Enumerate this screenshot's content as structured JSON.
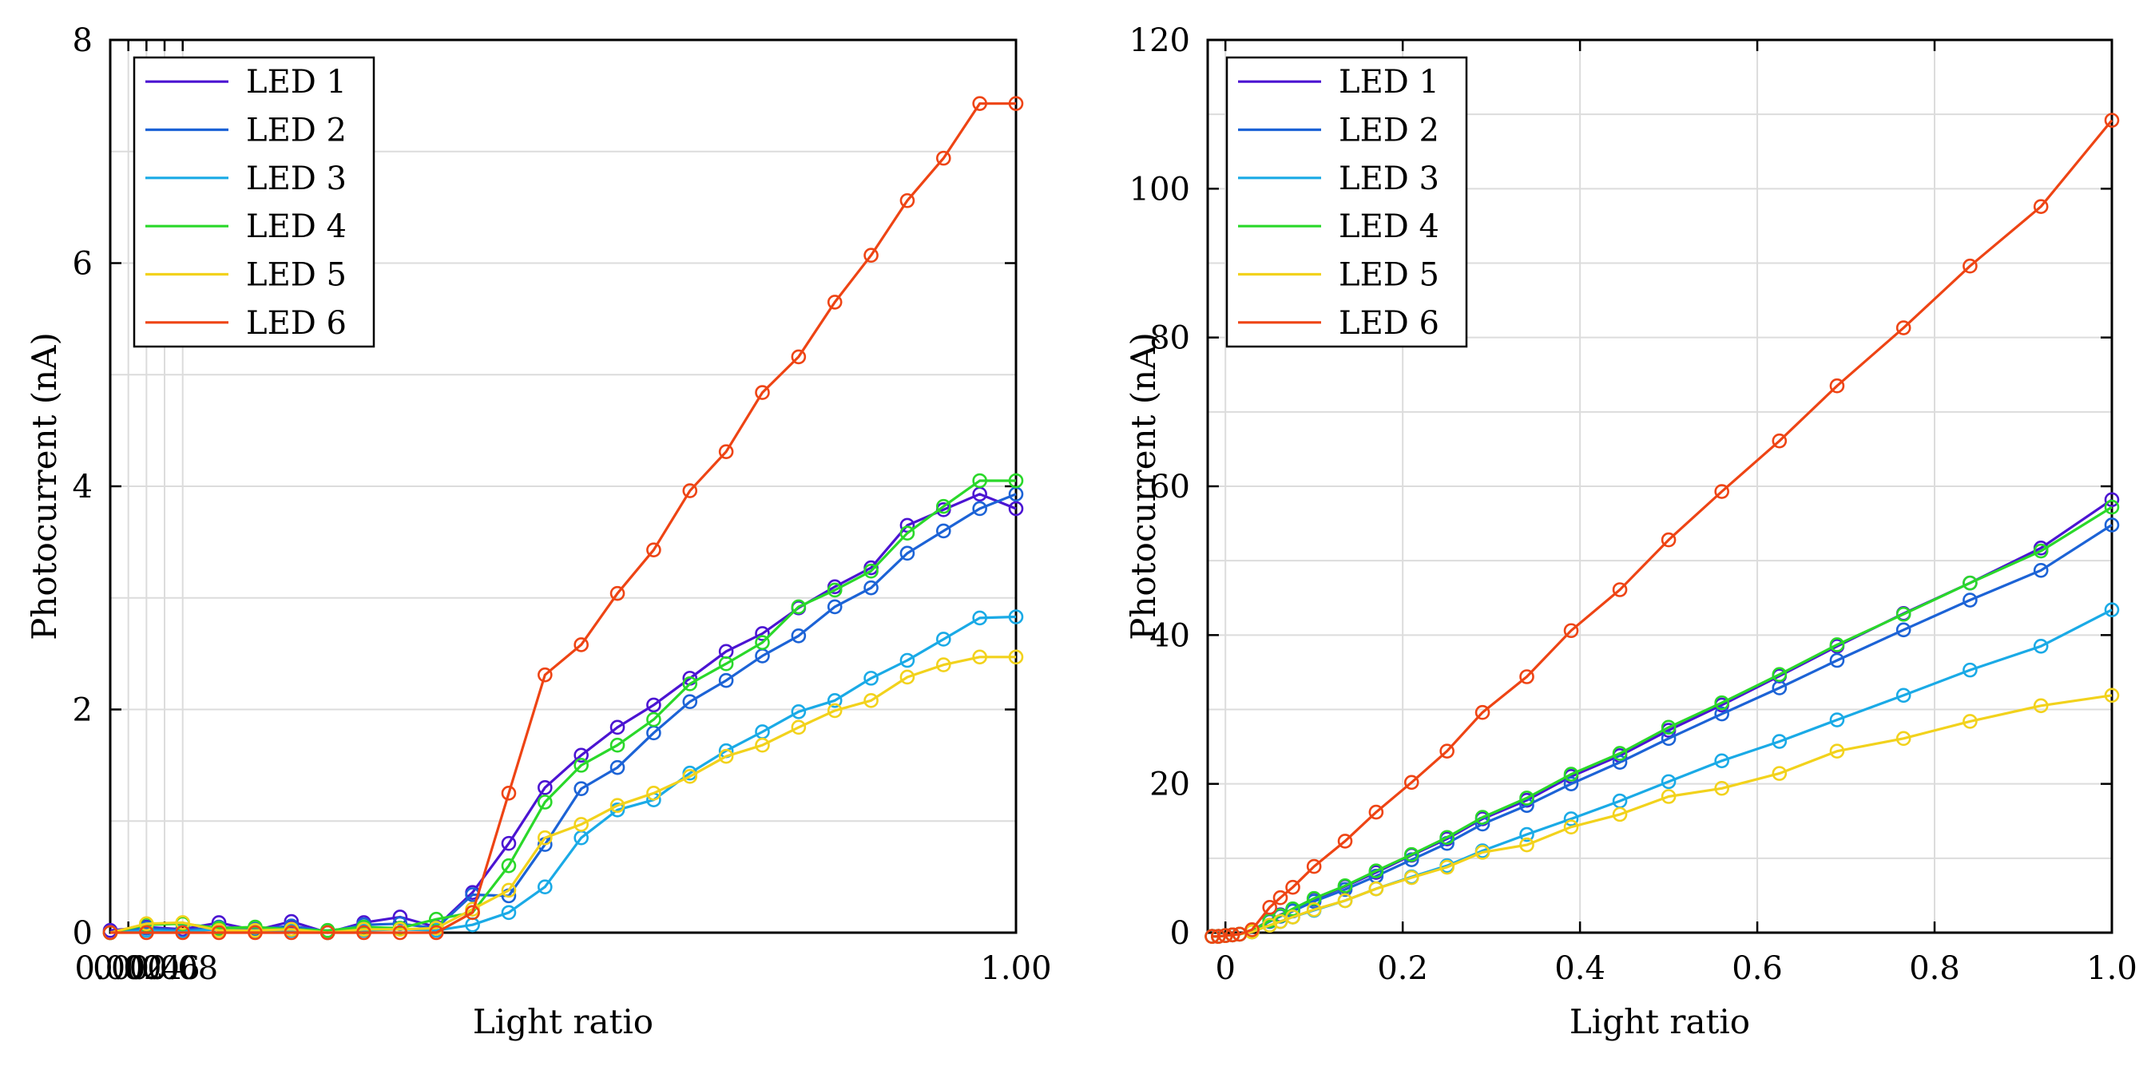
{
  "chart_data": [
    {
      "type": "line",
      "id": "left",
      "xlabel": "Light ratio",
      "ylabel": "Photocurrent (nA)",
      "xlim": [
        0,
        1.0
      ],
      "ylim": [
        0,
        8
      ],
      "grid": true,
      "legend_position": "top-left",
      "xticks": [
        {
          "value": 0.0,
          "label": "0.00"
        },
        {
          "value": 0.02,
          "label": "0.02"
        },
        {
          "value": 0.04,
          "label": "0.04"
        },
        {
          "value": 0.06,
          "label": "0.06"
        },
        {
          "value": 0.08,
          "label": "0.08"
        },
        {
          "value": 1.0,
          "label": "1.00"
        }
      ],
      "yticks": [
        {
          "value": 0,
          "label": "0"
        },
        {
          "value": 2,
          "label": "2"
        },
        {
          "value": 4,
          "label": "4"
        },
        {
          "value": 6,
          "label": "6"
        },
        {
          "value": 8,
          "label": "8"
        }
      ],
      "x": [
        0,
        0.04,
        0.08,
        0.12,
        0.16,
        0.2,
        0.24,
        0.28,
        0.32,
        0.36,
        0.4,
        0.44,
        0.48,
        0.52,
        0.56,
        0.6,
        0.64,
        0.68,
        0.72,
        0.76,
        0.8,
        0.84,
        0.88,
        0.92,
        0.96,
        1.0
      ],
      "series": [
        {
          "name": "LED 1",
          "color": "#4b14d2",
          "values": [
            0.02,
            0.05,
            0.03,
            0.09,
            0.02,
            0.1,
            0.0,
            0.09,
            0.14,
            0.05,
            0.36,
            0.8,
            1.3,
            1.59,
            1.84,
            2.04,
            2.28,
            2.52,
            2.68,
            2.91,
            3.1,
            3.27,
            3.65,
            3.79,
            3.93,
            3.8
          ]
        },
        {
          "name": "LED 2",
          "color": "#1c63d6",
          "values": [
            0.0,
            0.04,
            0.02,
            0.05,
            0.03,
            0.06,
            0.01,
            0.07,
            0.08,
            0.04,
            0.34,
            0.33,
            0.79,
            1.29,
            1.48,
            1.79,
            2.07,
            2.26,
            2.48,
            2.66,
            2.92,
            3.09,
            3.4,
            3.6,
            3.8,
            3.93
          ]
        },
        {
          "name": "LED 3",
          "color": "#1aaae6",
          "values": [
            0.0,
            0.02,
            0.01,
            0.03,
            0.01,
            0.02,
            0.0,
            0.02,
            0.03,
            0.02,
            0.07,
            0.18,
            0.41,
            0.85,
            1.1,
            1.19,
            1.43,
            1.63,
            1.8,
            1.98,
            2.08,
            2.28,
            2.44,
            2.63,
            2.82,
            2.83
          ]
        },
        {
          "name": "LED 4",
          "color": "#2ad82a",
          "values": [
            0.0,
            0.07,
            0.08,
            0.04,
            0.05,
            0.03,
            0.02,
            0.05,
            0.04,
            0.12,
            0.18,
            0.6,
            1.17,
            1.5,
            1.68,
            1.91,
            2.23,
            2.41,
            2.6,
            2.92,
            3.07,
            3.24,
            3.58,
            3.82,
            4.05,
            4.05
          ]
        },
        {
          "name": "LED 5",
          "color": "#f2d21c",
          "values": [
            0.0,
            0.08,
            0.09,
            0.02,
            0.02,
            0.03,
            0.0,
            0.03,
            0.03,
            0.04,
            0.21,
            0.38,
            0.85,
            0.97,
            1.14,
            1.25,
            1.4,
            1.58,
            1.68,
            1.84,
            1.99,
            2.08,
            2.29,
            2.4,
            2.47,
            2.47
          ]
        },
        {
          "name": "LED 6",
          "color": "#ee4414",
          "values": [
            0.0,
            0.0,
            0.0,
            0.0,
            0.0,
            0.0,
            0.0,
            0.0,
            0.0,
            0.0,
            0.18,
            1.25,
            2.31,
            2.58,
            3.04,
            3.43,
            3.96,
            4.31,
            4.84,
            5.16,
            5.65,
            6.07,
            6.56,
            6.94,
            7.43,
            7.43
          ]
        }
      ]
    },
    {
      "type": "line",
      "id": "right",
      "xlabel": "Light ratio",
      "ylabel": "Photocurrent (nA)",
      "xlim": [
        -0.02,
        1.0
      ],
      "ylim": [
        0,
        120
      ],
      "grid": true,
      "legend_position": "top-left",
      "xticks": [
        {
          "value": 0.0,
          "label": "0"
        },
        {
          "value": 0.2,
          "label": "0.2"
        },
        {
          "value": 0.4,
          "label": "0.4"
        },
        {
          "value": 0.6,
          "label": "0.6"
        },
        {
          "value": 0.8,
          "label": "0.8"
        },
        {
          "value": 1.0,
          "label": "1.0"
        }
      ],
      "yticks": [
        {
          "value": 0,
          "label": "0"
        },
        {
          "value": 20,
          "label": "20"
        },
        {
          "value": 40,
          "label": "40"
        },
        {
          "value": 60,
          "label": "60"
        },
        {
          "value": 80,
          "label": "80"
        },
        {
          "value": 100,
          "label": "100"
        },
        {
          "value": 120,
          "label": "120"
        }
      ],
      "x": [
        -0.015,
        -0.008,
        0.0,
        0.008,
        0.016,
        0.03,
        0.05,
        0.062,
        0.076,
        0.1,
        0.135,
        0.17,
        0.21,
        0.25,
        0.29,
        0.34,
        0.39,
        0.445,
        0.5,
        0.56,
        0.625,
        0.69,
        0.765,
        0.84,
        0.92,
        1.0
      ],
      "series": [
        {
          "name": "LED 1",
          "color": "#4b14d2",
          "values": [
            -0.5,
            -0.5,
            -0.4,
            -0.3,
            -0.2,
            0.3,
            1.7,
            2.4,
            3.1,
            4.5,
            6.2,
            8.1,
            10.4,
            12.6,
            15.3,
            17.8,
            21.0,
            23.8,
            27.2,
            30.6,
            34.5,
            38.5,
            42.9,
            47.0,
            51.7,
            58.2
          ]
        },
        {
          "name": "LED 2",
          "color": "#1c63d6",
          "values": [
            -0.5,
            -0.5,
            -0.4,
            -0.3,
            -0.2,
            0.2,
            1.5,
            2.2,
            2.9,
            4.2,
            5.8,
            7.6,
            9.8,
            12.0,
            14.6,
            17.1,
            20.0,
            22.9,
            26.1,
            29.4,
            32.9,
            36.6,
            40.7,
            44.7,
            48.7,
            54.8
          ]
        },
        {
          "name": "LED 3",
          "color": "#1aaae6",
          "values": [
            -0.5,
            -0.5,
            -0.4,
            -0.3,
            -0.2,
            0.1,
            1.0,
            1.5,
            2.1,
            3.0,
            4.3,
            5.9,
            7.5,
            9.0,
            11.0,
            13.2,
            15.3,
            17.7,
            20.3,
            23.1,
            25.7,
            28.6,
            31.9,
            35.3,
            38.5,
            43.4
          ]
        },
        {
          "name": "LED 4",
          "color": "#2ad82a",
          "values": [
            -0.5,
            -0.5,
            -0.4,
            -0.3,
            -0.2,
            0.3,
            1.6,
            2.3,
            3.2,
            4.6,
            6.3,
            8.3,
            10.5,
            12.8,
            15.5,
            18.1,
            21.3,
            24.1,
            27.6,
            30.9,
            34.7,
            38.7,
            42.8,
            47.0,
            51.3,
            57.2
          ]
        },
        {
          "name": "LED 5",
          "color": "#f2d21c",
          "values": [
            -0.5,
            -0.5,
            -0.4,
            -0.3,
            -0.2,
            0.1,
            1.0,
            1.5,
            2.1,
            3.1,
            4.3,
            5.9,
            7.4,
            8.8,
            10.8,
            11.8,
            14.2,
            15.9,
            18.3,
            19.4,
            21.4,
            24.4,
            26.1,
            28.4,
            30.5,
            31.9
          ]
        },
        {
          "name": "LED 6",
          "color": "#ee4414",
          "values": [
            -0.5,
            -0.5,
            -0.4,
            -0.3,
            -0.2,
            0.4,
            3.4,
            4.7,
            6.1,
            8.9,
            12.3,
            16.2,
            20.2,
            24.4,
            29.6,
            34.4,
            40.6,
            46.1,
            52.8,
            59.3,
            66.1,
            73.5,
            81.3,
            89.6,
            97.6,
            109.2
          ]
        }
      ]
    }
  ]
}
